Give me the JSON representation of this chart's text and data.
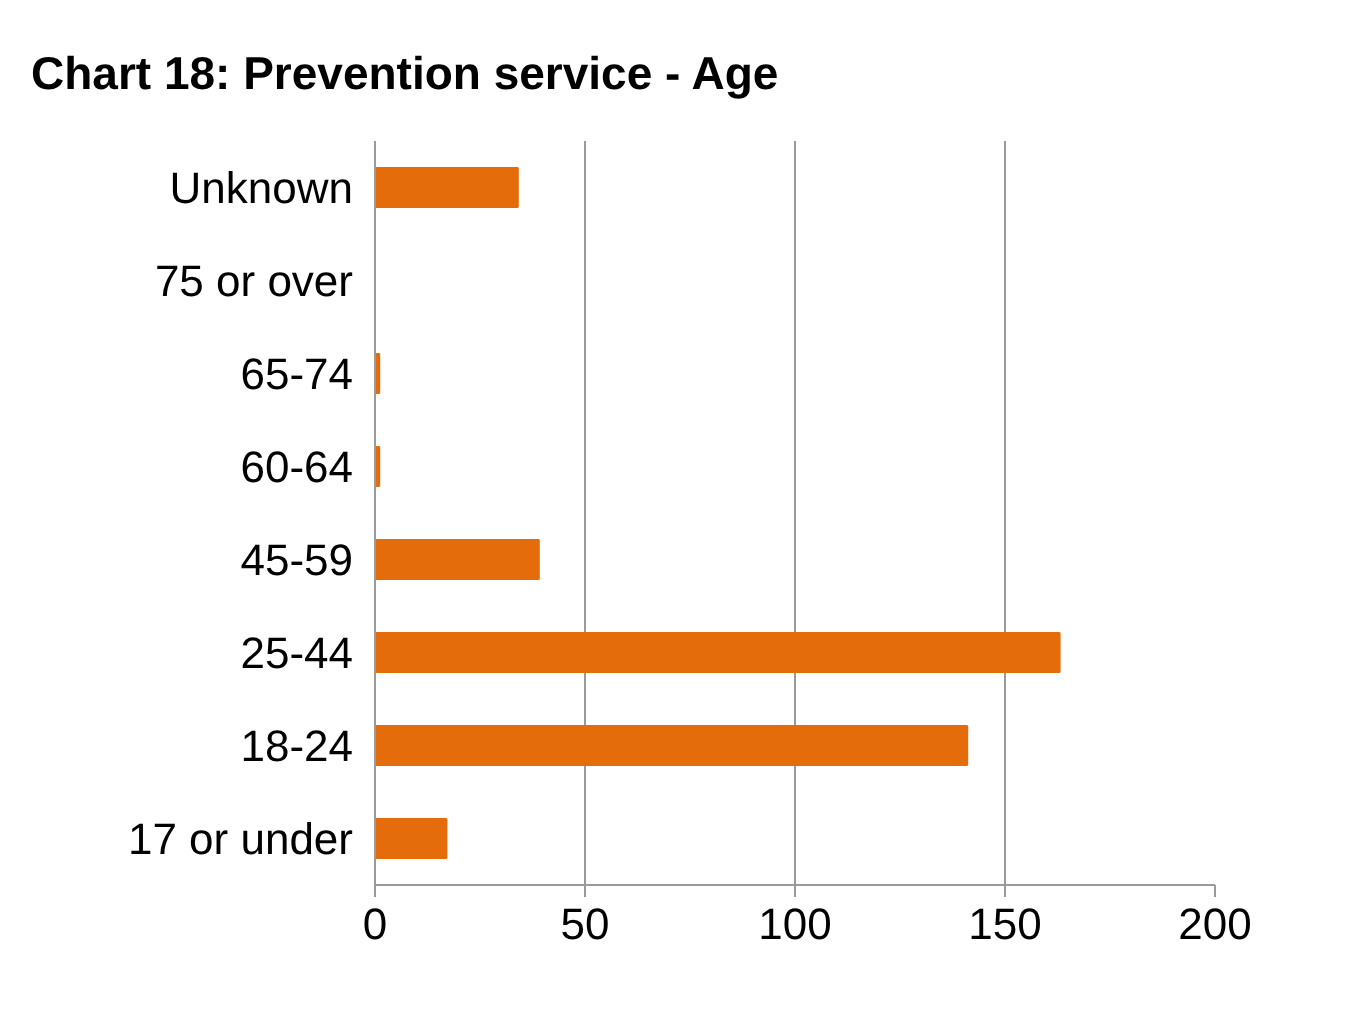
{
  "chart_data": {
    "type": "bar",
    "title": "Chart 18: Prevention service - Age",
    "orientation": "horizontal",
    "categories": [
      "Unknown",
      "75 or over",
      "65-74",
      "60-64",
      "45-59",
      "25-44",
      "18-24",
      "17 or under"
    ],
    "values": [
      34,
      0,
      1,
      1,
      39,
      163,
      141,
      17
    ],
    "color": "#e46c0a",
    "xlim": [
      0,
      200
    ],
    "xticks": [
      0,
      50,
      100,
      150,
      200
    ],
    "grid": "x"
  }
}
